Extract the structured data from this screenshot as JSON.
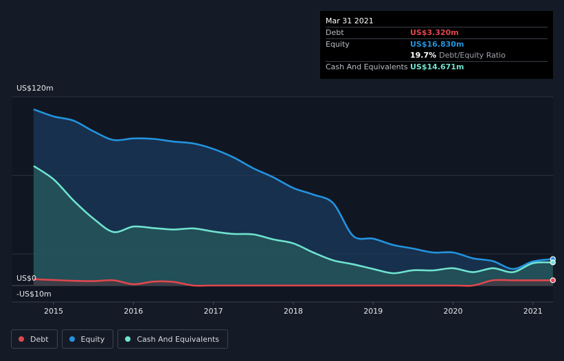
{
  "tooltip": {
    "date": "Mar 31 2021",
    "debt_label": "Debt",
    "debt_value": "US$3.320m",
    "equity_label": "Equity",
    "equity_value": "US$16.830m",
    "ratio_value": "19.7%",
    "ratio_label": "Debt/Equity Ratio",
    "cash_label": "Cash And Equivalents",
    "cash_value": "US$14.671m"
  },
  "legend": {
    "debt": "Debt",
    "equity": "Equity",
    "cash": "Cash And Equivalents"
  },
  "colors": {
    "debt": "#e0474c",
    "equity": "#2394df",
    "cash": "#6fe3cf",
    "background": "#151b26"
  },
  "chart_data": {
    "type": "area",
    "y_axis_labels": [
      "US$120m",
      "US$0",
      "-US$10m"
    ],
    "ylim": [
      -10,
      120
    ],
    "x_tick_labels": [
      "2015",
      "2016",
      "2017",
      "2018",
      "2019",
      "2020",
      "2021"
    ],
    "grid": true,
    "legend_position": "bottom-left",
    "series": [
      {
        "name": "Equity",
        "points": [
          [
            2014.75,
            112
          ],
          [
            2015.0,
            107.5
          ],
          [
            2015.25,
            104.8
          ],
          [
            2015.5,
            98
          ],
          [
            2015.75,
            92.5
          ],
          [
            2016.0,
            93.5
          ],
          [
            2016.25,
            93.2
          ],
          [
            2016.5,
            91.5
          ],
          [
            2016.75,
            90.3
          ],
          [
            2017.0,
            86.8
          ],
          [
            2017.25,
            81.5
          ],
          [
            2017.5,
            74.5
          ],
          [
            2017.75,
            68.8
          ],
          [
            2018.0,
            62
          ],
          [
            2018.25,
            57.8
          ],
          [
            2018.5,
            52.3
          ],
          [
            2018.75,
            31.5
          ],
          [
            2019.0,
            29.8
          ],
          [
            2019.25,
            25.8
          ],
          [
            2019.5,
            23.5
          ],
          [
            2019.75,
            21
          ],
          [
            2020.0,
            21
          ],
          [
            2020.25,
            17.3
          ],
          [
            2020.5,
            15.5
          ],
          [
            2020.75,
            10.5
          ],
          [
            2021.0,
            15.3
          ],
          [
            2021.25,
            16.83
          ]
        ]
      },
      {
        "name": "Cash And Equivalents",
        "points": [
          [
            2014.75,
            76
          ],
          [
            2015.0,
            67.5
          ],
          [
            2015.25,
            54
          ],
          [
            2015.5,
            42.5
          ],
          [
            2015.75,
            34
          ],
          [
            2016.0,
            37.5
          ],
          [
            2016.25,
            36.5
          ],
          [
            2016.5,
            35.6
          ],
          [
            2016.75,
            36.3
          ],
          [
            2017.0,
            34.3
          ],
          [
            2017.25,
            32.8
          ],
          [
            2017.5,
            32.5
          ],
          [
            2017.75,
            29.3
          ],
          [
            2018.0,
            26.8
          ],
          [
            2018.25,
            21
          ],
          [
            2018.5,
            16
          ],
          [
            2018.75,
            13.5
          ],
          [
            2019.0,
            10.5
          ],
          [
            2019.25,
            7.8
          ],
          [
            2019.5,
            9.7
          ],
          [
            2019.75,
            9.6
          ],
          [
            2020.0,
            11
          ],
          [
            2020.25,
            8.5
          ],
          [
            2020.5,
            11
          ],
          [
            2020.75,
            8.5
          ],
          [
            2021.0,
            14.2
          ],
          [
            2021.25,
            14.671
          ]
        ]
      },
      {
        "name": "Debt",
        "points": [
          [
            2014.75,
            4
          ],
          [
            2015.0,
            3.5
          ],
          [
            2015.25,
            3
          ],
          [
            2015.5,
            2.8
          ],
          [
            2015.75,
            3.3
          ],
          [
            2016.0,
            0.8
          ],
          [
            2016.25,
            2.5
          ],
          [
            2016.5,
            2.3
          ],
          [
            2016.75,
            0
          ],
          [
            2017.0,
            0
          ],
          [
            2018.0,
            0
          ],
          [
            2019.0,
            0
          ],
          [
            2020.0,
            0
          ],
          [
            2020.25,
            0
          ],
          [
            2020.5,
            3.32
          ],
          [
            2020.75,
            3.32
          ],
          [
            2021.0,
            3.32
          ],
          [
            2021.25,
            3.32
          ]
        ]
      }
    ]
  }
}
